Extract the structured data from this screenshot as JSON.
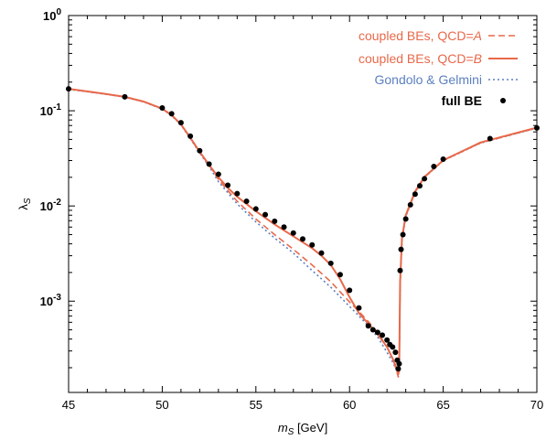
{
  "chart_data": {
    "type": "line",
    "xlabel": "m_S [GeV]",
    "ylabel": "λ_S",
    "xlim": [
      45,
      70
    ],
    "ylim": [
      0.00011,
      1
    ],
    "yscale": "log",
    "grid": false,
    "legend_position": "top-right",
    "x_ticks": [
      45,
      50,
      55,
      60,
      65,
      70
    ],
    "y_ticks": [
      {
        "value": 1,
        "mantissa": "10",
        "exp": "0"
      },
      {
        "value": 0.1,
        "mantissa": "10",
        "exp": "-1"
      },
      {
        "value": 0.01,
        "mantissa": "10",
        "exp": "-2"
      },
      {
        "value": 0.001,
        "mantissa": "10",
        "exp": "-3"
      }
    ],
    "legend": [
      {
        "text": "coupled BEs, QCD=",
        "italic": "A",
        "style": "dashed",
        "color": "#e8694a"
      },
      {
        "text": "coupled BEs, QCD=",
        "italic": "B",
        "style": "solid",
        "color": "#e8694a"
      },
      {
        "text": "Gondolo & Gelmini",
        "italic": "",
        "style": "dotted",
        "color": "#5b7fc0"
      },
      {
        "text": "full BE",
        "italic": "",
        "style": "dot",
        "color": "#000000",
        "bold": true
      }
    ],
    "series": [
      {
        "name": "coupled BEs, QCD=A",
        "style": "dashed",
        "color": "#e8694a",
        "x": [
          45,
          47,
          48,
          49,
          50,
          50.5,
          51,
          51.5,
          52,
          52.5,
          53,
          53.5,
          54,
          55,
          56,
          57,
          58,
          59,
          60,
          60.5,
          61,
          61.5,
          62,
          62.3,
          62.5,
          62.6,
          62.65,
          62.7,
          62.8,
          63,
          63.5,
          64,
          65,
          67,
          70
        ],
        "y": [
          0.17,
          0.15,
          0.14,
          0.125,
          0.105,
          0.09,
          0.072,
          0.052,
          0.037,
          0.027,
          0.019,
          0.0145,
          0.0112,
          0.0073,
          0.005,
          0.0035,
          0.0024,
          0.0016,
          0.00098,
          0.00078,
          0.00061,
          0.00047,
          0.00033,
          0.00025,
          0.00019,
          0.00016,
          0.00018,
          0.0015,
          0.0045,
          0.0078,
          0.014,
          0.02,
          0.03,
          0.046,
          0.066
        ]
      },
      {
        "name": "coupled BEs, QCD=B",
        "style": "solid",
        "color": "#e8694a",
        "x": [
          45,
          47,
          48,
          49,
          50,
          50.5,
          51,
          51.5,
          52,
          52.5,
          53,
          53.5,
          54,
          55,
          56,
          57,
          58,
          58.5,
          59,
          59.5,
          60,
          60.5,
          61,
          61.5,
          62,
          62.3,
          62.5,
          62.6,
          62.65,
          62.7,
          62.8,
          63,
          63.5,
          64,
          65,
          67,
          70
        ],
        "y": [
          0.17,
          0.15,
          0.14,
          0.125,
          0.105,
          0.09,
          0.072,
          0.052,
          0.037,
          0.027,
          0.02,
          0.0155,
          0.0125,
          0.0088,
          0.0064,
          0.0048,
          0.0036,
          0.003,
          0.0024,
          0.0017,
          0.0011,
          0.00075,
          0.00058,
          0.00045,
          0.00033,
          0.00025,
          0.0002,
          0.00017,
          0.00019,
          0.0016,
          0.0046,
          0.008,
          0.0142,
          0.0202,
          0.0302,
          0.0465,
          0.0665
        ]
      },
      {
        "name": "Gondolo & Gelmini",
        "style": "dotted",
        "color": "#5b7fc0",
        "x": [
          45,
          47,
          48,
          49,
          50,
          50.5,
          51,
          51.5,
          52,
          52.5,
          53,
          53.5,
          54,
          55,
          56,
          57,
          58,
          59,
          60,
          60.5,
          61,
          61.5,
          62,
          62.3,
          62.5,
          62.6,
          62.65,
          62.7,
          62.8,
          63,
          63.5,
          64,
          65,
          67,
          70
        ],
        "y": [
          0.168,
          0.149,
          0.139,
          0.124,
          0.104,
          0.089,
          0.071,
          0.051,
          0.036,
          0.026,
          0.018,
          0.0138,
          0.0105,
          0.0068,
          0.0046,
          0.0032,
          0.0021,
          0.0014,
          0.00088,
          0.0007,
          0.00055,
          0.00042,
          0.00029,
          0.00023,
          0.00019,
          0.000175,
          0.00019,
          0.0015,
          0.0044,
          0.0077,
          0.0139,
          0.0199,
          0.0299,
          0.0458,
          0.0658
        ]
      },
      {
        "name": "full BE",
        "style": "dot",
        "color": "#000000",
        "x": [
          45,
          48,
          50,
          50.5,
          51,
          51.5,
          52,
          52.5,
          53,
          53.5,
          54,
          54.5,
          55,
          55.5,
          56,
          56.5,
          57,
          57.5,
          58,
          58.5,
          59,
          59.5,
          60,
          60.5,
          61,
          61.25,
          61.5,
          61.75,
          62,
          62.15,
          62.3,
          62.45,
          62.55,
          62.6,
          62.65,
          62.7,
          62.75,
          62.85,
          63,
          63.25,
          63.5,
          63.75,
          64,
          64.5,
          65,
          67.5,
          70
        ],
        "y": [
          0.17,
          0.14,
          0.107,
          0.093,
          0.075,
          0.054,
          0.038,
          0.0275,
          0.0215,
          0.0165,
          0.0135,
          0.0112,
          0.0093,
          0.0081,
          0.0069,
          0.006,
          0.0052,
          0.0045,
          0.0039,
          0.0032,
          0.0025,
          0.0019,
          0.0013,
          0.00085,
          0.00055,
          0.0005,
          0.00047,
          0.00044,
          0.00039,
          0.00035,
          0.00033,
          0.00029,
          0.00024,
          0.000195,
          0.00022,
          0.0021,
          0.0035,
          0.005,
          0.0073,
          0.0103,
          0.0133,
          0.0163,
          0.0193,
          0.026,
          0.031,
          0.051,
          0.066
        ]
      }
    ]
  }
}
